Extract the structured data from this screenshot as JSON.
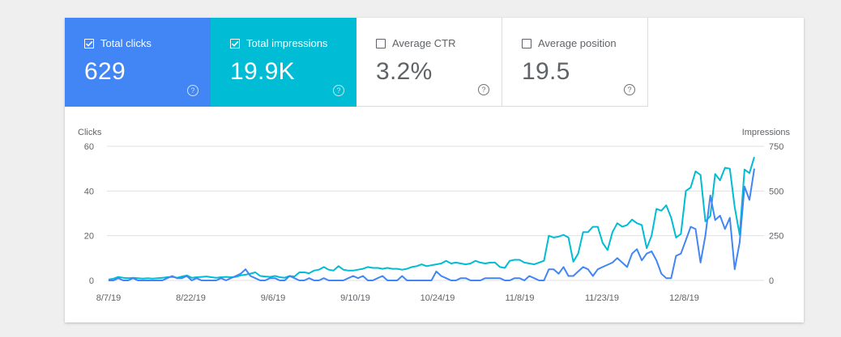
{
  "metrics": [
    {
      "label": "Total clicks",
      "value": "629",
      "checked": true,
      "help": "?"
    },
    {
      "label": "Total impressions",
      "value": "19.9K",
      "checked": true,
      "help": "?"
    },
    {
      "label": "Average CTR",
      "value": "3.2%",
      "checked": false,
      "help": "?"
    },
    {
      "label": "Average position",
      "value": "19.5",
      "checked": false,
      "help": "?"
    }
  ],
  "colors": {
    "clicks": "#4285f4",
    "impressions": "#00bcd4",
    "grid": "#e0e0e0",
    "text": "#5f6368"
  },
  "chart_data": {
    "type": "line",
    "xlabel": "",
    "left_axis_label": "Clicks",
    "right_axis_label": "Impressions",
    "left_ylim": [
      0,
      60
    ],
    "right_ylim": [
      0,
      750
    ],
    "left_ticks": [
      "0",
      "20",
      "40",
      "60"
    ],
    "right_ticks": [
      "0",
      "250",
      "500",
      "750"
    ],
    "x_ticks": [
      "8/7/19",
      "8/22/19",
      "9/6/19",
      "9/10/19",
      "10/24/19",
      "11/8/19",
      "11/23/19",
      "12/8/19"
    ],
    "grid": true,
    "series": [
      {
        "name": "Clicks",
        "axis": "left",
        "values": [
          0,
          0,
          1,
          0,
          0,
          1,
          0,
          0,
          0,
          0,
          0,
          0,
          1,
          2,
          1,
          1,
          2,
          0,
          1,
          0,
          0,
          0,
          0,
          1,
          0,
          1,
          2,
          3,
          5,
          2,
          1,
          0,
          0,
          1,
          1,
          0,
          0,
          2,
          1,
          0,
          0,
          1,
          0,
          0,
          1,
          0,
          0,
          0,
          0,
          1,
          2,
          1,
          2,
          0,
          0,
          1,
          2,
          0,
          0,
          0,
          2,
          0,
          0,
          0,
          0,
          0,
          0,
          4,
          2,
          1,
          0,
          0,
          1,
          1,
          0,
          0,
          0,
          1,
          1,
          1,
          1,
          0,
          0,
          1,
          1,
          0,
          2,
          1,
          0,
          0,
          5,
          5,
          3,
          6,
          2,
          2,
          4,
          6,
          5,
          2,
          5,
          6,
          7,
          8,
          10,
          8,
          6,
          12,
          14,
          9,
          12,
          13,
          9,
          3,
          1,
          1,
          11,
          12,
          18,
          24,
          23,
          8,
          20,
          38,
          27,
          29,
          23,
          28,
          5,
          17,
          42,
          36,
          50
        ]
      },
      {
        "name": "Impressions",
        "axis": "right",
        "values": [
          5,
          10,
          20,
          15,
          12,
          15,
          12,
          10,
          12,
          10,
          12,
          15,
          18,
          20,
          15,
          22,
          28,
          15,
          18,
          20,
          22,
          18,
          15,
          18,
          20,
          18,
          20,
          28,
          32,
          38,
          45,
          25,
          22,
          20,
          25,
          18,
          15,
          25,
          22,
          45,
          45,
          40,
          55,
          60,
          75,
          60,
          55,
          80,
          60,
          55,
          55,
          60,
          65,
          75,
          70,
          70,
          65,
          70,
          65,
          65,
          60,
          65,
          75,
          80,
          90,
          80,
          85,
          90,
          95,
          110,
          95,
          100,
          95,
          90,
          95,
          110,
          100,
          95,
          100,
          100,
          75,
          70,
          110,
          115,
          115,
          100,
          95,
          90,
          100,
          110,
          250,
          240,
          245,
          255,
          240,
          105,
          150,
          270,
          270,
          300,
          300,
          210,
          170,
          270,
          320,
          300,
          310,
          340,
          320,
          310,
          180,
          250,
          400,
          390,
          420,
          350,
          240,
          260,
          500,
          520,
          610,
          590,
          330,
          360,
          595,
          560,
          630,
          625,
          410,
          255,
          620,
          600,
          690
        ]
      }
    ]
  }
}
